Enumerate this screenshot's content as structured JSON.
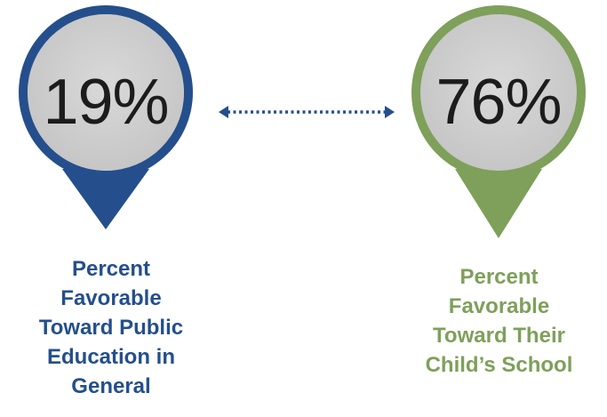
{
  "left": {
    "value": "19%",
    "caption_lines": [
      "Percent",
      "Favorable",
      "Toward Public",
      "Education in",
      "General"
    ],
    "color": "#244f8c"
  },
  "right": {
    "value": "76%",
    "caption_lines": [
      "Percent",
      "Favorable",
      "Toward Their",
      "Child’s School"
    ],
    "color": "#7ea05a"
  },
  "connector": {
    "style": "dotted double-headed arrow",
    "color": "#244f8c"
  }
}
